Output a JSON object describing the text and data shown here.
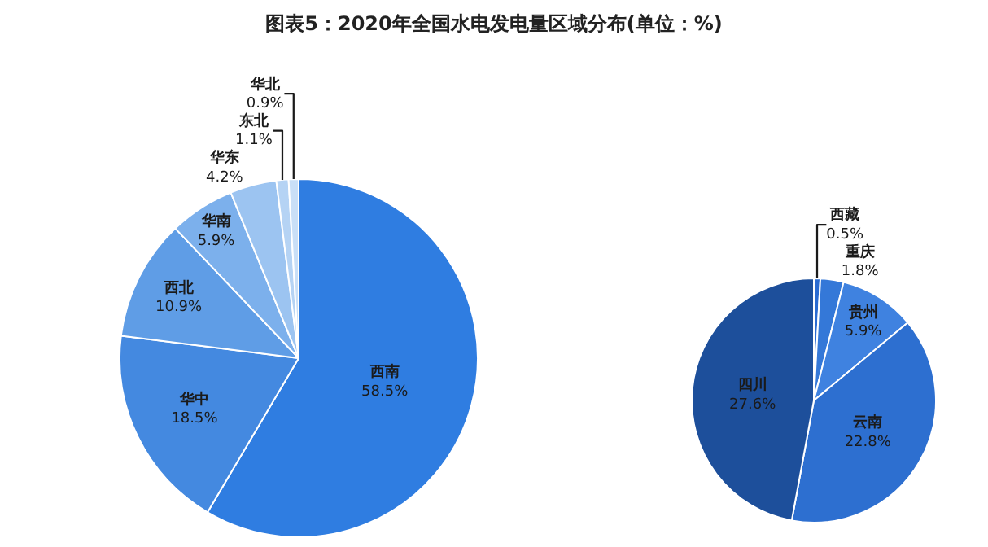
{
  "chart_data": [
    {
      "type": "pie",
      "title": "图表5：2020年全国水电发电量区域分布(单位：%)",
      "categories": [
        "西南",
        "华中",
        "西北",
        "华南",
        "华东",
        "东北",
        "华北"
      ],
      "values": [
        58.5,
        18.5,
        10.9,
        5.9,
        4.2,
        1.1,
        0.9
      ],
      "value_labels": [
        "58.5%",
        "18.5%",
        "10.9%",
        "5.9%",
        "4.2%",
        "1.1%",
        "0.9%"
      ],
      "colors": [
        "#2f7de1",
        "#4489e0",
        "#5f9de6",
        "#7cb0ec",
        "#9cc4f1",
        "#b5d3f4",
        "#c9dff7"
      ]
    },
    {
      "type": "pie",
      "categories": [
        "西藏",
        "重庆",
        "贵州",
        "云南",
        "四川"
      ],
      "values": [
        0.5,
        1.8,
        5.9,
        22.8,
        27.6
      ],
      "value_labels": [
        "0.5%",
        "1.8%",
        "5.9%",
        "22.8%",
        "27.6%"
      ],
      "colors": [
        "#2a6bd1",
        "#3478d8",
        "#3f82e0",
        "#2d6fd0",
        "#1d4f9b"
      ]
    }
  ]
}
